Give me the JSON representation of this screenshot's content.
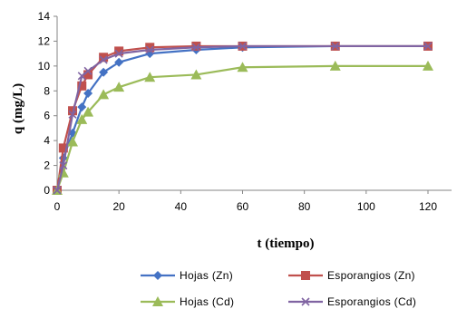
{
  "chart_data": {
    "type": "line",
    "xlabel": "t (tiempo)",
    "ylabel": "q (mg/L)",
    "xlim": [
      0,
      120
    ],
    "ylim": [
      0,
      14
    ],
    "x_ticks": [
      0,
      20,
      40,
      60,
      80,
      100,
      120
    ],
    "y_ticks": [
      0,
      2,
      4,
      6,
      8,
      10,
      12,
      14
    ],
    "grid": false,
    "legend_position": "bottom",
    "series": [
      {
        "name": "Hojas (Zn)",
        "color": "#4472C4",
        "marker": "diamond",
        "x": [
          0,
          2,
          5,
          8,
          10,
          15,
          20,
          30,
          45,
          60,
          90,
          120
        ],
        "y": [
          0,
          2.6,
          4.6,
          6.7,
          7.8,
          9.5,
          10.3,
          11.0,
          11.3,
          11.5,
          11.6,
          11.6
        ]
      },
      {
        "name": "Esporangios (Zn)",
        "color": "#C0504D",
        "marker": "square",
        "x": [
          0,
          2,
          5,
          8,
          10,
          15,
          20,
          30,
          45,
          60,
          90,
          120
        ],
        "y": [
          0,
          3.4,
          6.4,
          8.4,
          9.3,
          10.7,
          11.2,
          11.5,
          11.6,
          11.6,
          11.6,
          11.6
        ]
      },
      {
        "name": "Hojas (Cd)",
        "color": "#9BBB59",
        "marker": "triangle",
        "x": [
          0,
          2,
          5,
          8,
          10,
          15,
          20,
          30,
          45,
          60,
          90,
          120
        ],
        "y": [
          0,
          1.4,
          3.9,
          5.7,
          6.3,
          7.7,
          8.3,
          9.1,
          9.3,
          9.9,
          10.0,
          10.0
        ]
      },
      {
        "name": "Esporangios (Cd)",
        "color": "#8064A2",
        "marker": "x",
        "x": [
          0,
          2,
          5,
          8,
          10,
          15,
          20,
          30,
          45,
          60,
          90,
          120
        ],
        "y": [
          0,
          2.0,
          6.1,
          9.2,
          9.6,
          10.5,
          11.0,
          11.3,
          11.5,
          11.6,
          11.6,
          11.6
        ]
      }
    ]
  }
}
